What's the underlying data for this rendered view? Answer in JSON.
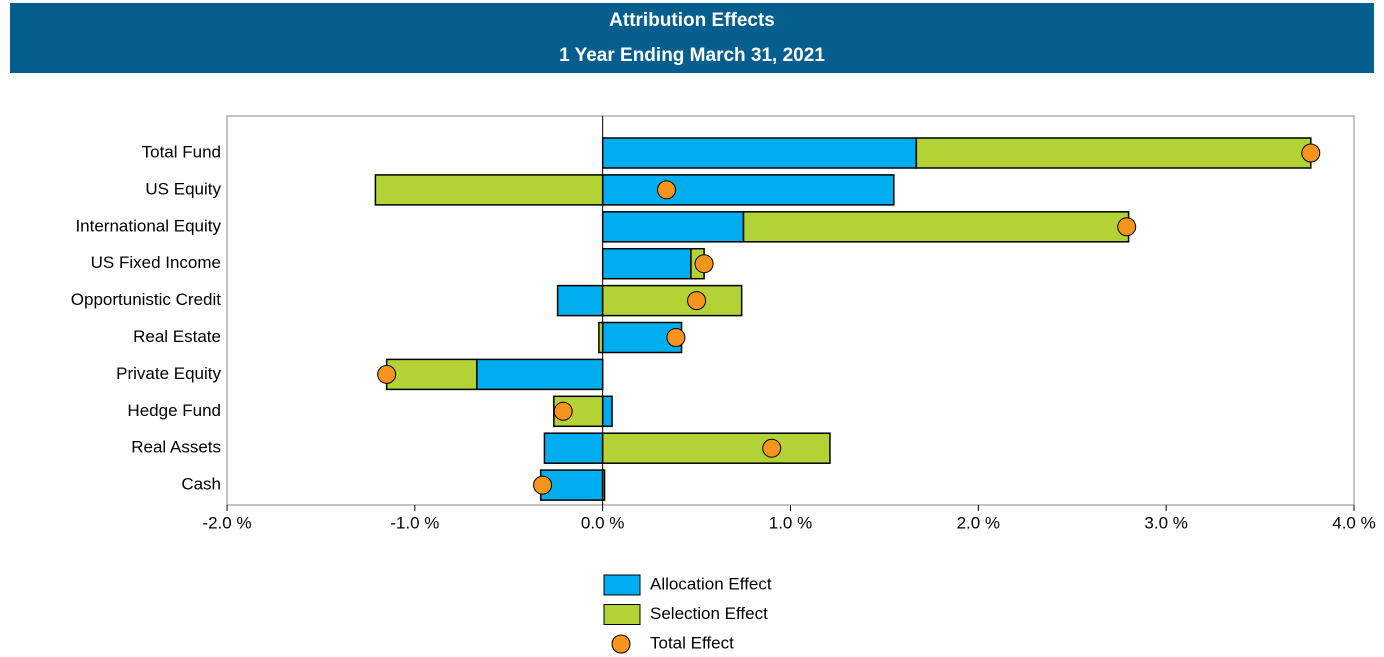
{
  "chart_data": {
    "type": "bar",
    "orientation": "horizontal",
    "stacked": true,
    "title": "Attribution Effects",
    "subtitle": "1 Year Ending March 31, 2021",
    "categories": [
      "Total Fund",
      "US Equity",
      "International Equity",
      "US Fixed Income",
      "Opportunistic Credit",
      "Real Estate",
      "Private Equity",
      "Hedge Fund",
      "Real Assets",
      "Cash"
    ],
    "series": [
      {
        "name": "Allocation Effect",
        "color": "#00aeef",
        "values": [
          1.67,
          1.55,
          0.75,
          0.47,
          -0.24,
          0.42,
          -0.67,
          0.05,
          -0.31,
          -0.33
        ]
      },
      {
        "name": "Selection Effect",
        "color": "#b3d235",
        "values": [
          2.1,
          -1.21,
          2.05,
          0.07,
          0.74,
          -0.02,
          -0.48,
          -0.26,
          1.21,
          0.01
        ]
      },
      {
        "name": "Total Effect",
        "color": "#f7941d",
        "kind": "point",
        "values": [
          3.77,
          0.34,
          2.79,
          0.54,
          0.5,
          0.39,
          -1.15,
          -0.21,
          0.9,
          -0.32
        ]
      }
    ],
    "xlim": [
      -2,
      4
    ],
    "xticks": [
      {
        "value": -2,
        "label": "-2.0 %"
      },
      {
        "value": -1,
        "label": "-1.0 %"
      },
      {
        "value": 0,
        "label": "0.0 %"
      },
      {
        "value": 1,
        "label": "1.0 %"
      },
      {
        "value": 2,
        "label": "2.0 %"
      },
      {
        "value": 3,
        "label": "3.0 %"
      },
      {
        "value": 4,
        "label": "4.0 %"
      }
    ],
    "legend": "bottom"
  }
}
